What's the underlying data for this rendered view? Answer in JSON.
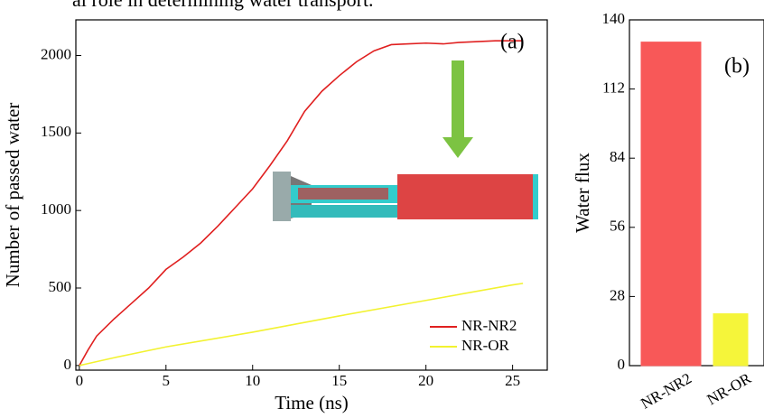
{
  "caption": "al role in determining water transport.",
  "chart_data": [
    {
      "type": "line",
      "annotation": "(a)",
      "x_label": "Time (ns)",
      "y_label": "Number of passed water",
      "xlim": [
        -0.2,
        27
      ],
      "ylim": [
        -30,
        2230
      ],
      "xticks": [
        0,
        5,
        10,
        15,
        20,
        25
      ],
      "yticks": [
        0,
        500,
        1000,
        1500,
        2000
      ],
      "legend": "lower right",
      "series": [
        {
          "name": "NR-NR2",
          "color": "#e02020",
          "x": [
            0,
            0.5,
            1,
            2,
            3,
            4,
            5,
            6,
            7,
            8,
            9,
            10,
            11,
            12,
            13,
            14,
            15,
            16,
            17,
            18,
            19,
            20,
            21,
            22,
            23,
            24,
            25,
            25.6
          ],
          "values": [
            0,
            100,
            190,
            300,
            400,
            500,
            620,
            700,
            790,
            900,
            1020,
            1140,
            1290,
            1450,
            1640,
            1770,
            1870,
            1960,
            2030,
            2070,
            2075,
            2080,
            2075,
            2085,
            2090,
            2095,
            2095,
            2095
          ]
        },
        {
          "name": "NR-OR",
          "color": "#f2f230",
          "x": [
            0,
            2,
            5,
            10,
            15,
            20,
            25,
            25.6
          ],
          "values": [
            0,
            50,
            120,
            215,
            320,
            420,
            520,
            530
          ]
        }
      ]
    },
    {
      "type": "bar",
      "annotation": "(b)",
      "y_label": "Water flux",
      "categories": [
        "NR-NR2",
        "NR-OR"
      ],
      "values": [
        131,
        21
      ],
      "colors": [
        "#f85858",
        "#f5f53a"
      ],
      "ylim": [
        0,
        140
      ],
      "yticks": [
        0,
        28,
        56,
        84,
        112,
        140
      ]
    }
  ]
}
